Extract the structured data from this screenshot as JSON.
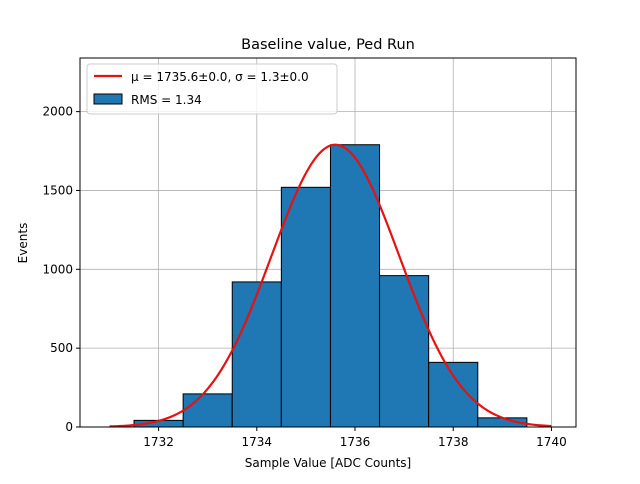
{
  "chart_data": {
    "type": "bar",
    "title": "Baseline value, Ped Run",
    "xlabel": "Sample Value [ADC Counts]",
    "ylabel": "Events",
    "xlim": [
      1730.4,
      1740.5
    ],
    "ylim": [
      0,
      2340
    ],
    "grid": true,
    "legend_position": "top-left",
    "xticks": [
      1732,
      1734,
      1736,
      1738,
      1740
    ],
    "yticks": [
      0,
      500,
      1000,
      1500,
      2000
    ],
    "bins": [
      {
        "left": 1731.5,
        "right": 1732.5,
        "value": 42
      },
      {
        "left": 1732.5,
        "right": 1733.5,
        "value": 210
      },
      {
        "left": 1733.5,
        "right": 1734.5,
        "value": 920
      },
      {
        "left": 1734.5,
        "right": 1735.5,
        "value": 1520
      },
      {
        "left": 1735.5,
        "right": 1736.5,
        "value": 1790
      },
      {
        "left": 1736.5,
        "right": 1737.5,
        "value": 960
      },
      {
        "left": 1737.5,
        "right": 1738.5,
        "value": 410
      },
      {
        "left": 1738.5,
        "right": 1739.5,
        "value": 58
      }
    ],
    "bar_color": "#1f77b4",
    "fit": {
      "mu": 1735.6,
      "sigma": 1.3,
      "amplitude": 1790,
      "x_range": [
        1731,
        1740
      ],
      "color": "#e8110f"
    },
    "legend": [
      {
        "kind": "line",
        "mu_label": "μ = 1735.6±0.0",
        "sigma_label": "σ = 1.3±0.0",
        "separator": ", "
      },
      {
        "kind": "patch",
        "label": "RMS = 1.34"
      }
    ]
  }
}
